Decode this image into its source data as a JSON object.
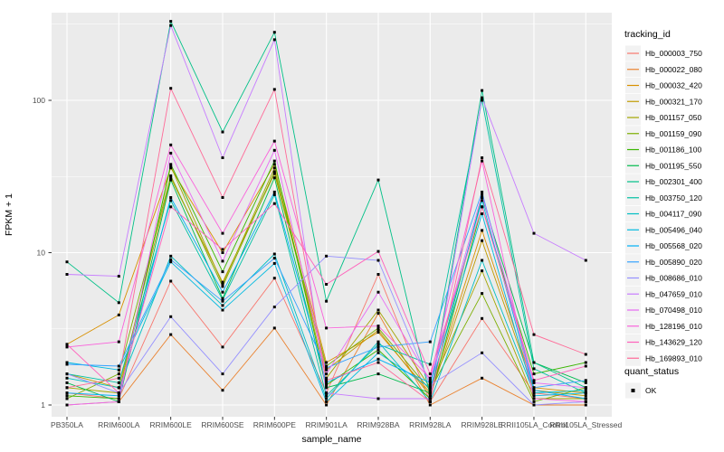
{
  "chart_data": {
    "type": "line",
    "title": "",
    "xlabel": "sample_name",
    "ylabel": "FPKM + 1",
    "y_scale": "log10",
    "ylim": [
      1,
      380
    ],
    "y_ticks": [
      1,
      10,
      100
    ],
    "y_tick_labels": [
      "1",
      "10",
      "100"
    ],
    "grid": "major white on grey panel, log minor lines",
    "legend_position": "right",
    "point_shape": "filled-square",
    "point_color": "#000000",
    "categories": [
      "PB350LA",
      "RRIM600LA",
      "RRIM600LE",
      "RRIM600SE",
      "RRIM600PE",
      "RRIM901LA",
      "RRIM928BA",
      "RRIM928LA",
      "RRIM928LE",
      "RRII105LA_Control",
      "RRII105LA_Stressed"
    ],
    "legend": {
      "color_title": "tracking_id",
      "shape_title": "quant_status",
      "shape_items": [
        {
          "label": "OK",
          "glyph": "filled-square",
          "color": "#000000"
        }
      ]
    },
    "series": [
      {
        "name": "Hb_000003_750",
        "color": "#F8766D",
        "values": [
          1.2,
          1.1,
          6.5,
          2.4,
          6.8,
          1.2,
          7.2,
          1.05,
          3.7,
          1.2,
          1.1
        ]
      },
      {
        "name": "Hb_000022_080",
        "color": "#EA8331",
        "values": [
          1.0,
          1.05,
          2.9,
          1.25,
          3.2,
          1.0,
          4.0,
          1.0,
          1.5,
          1.0,
          1.0
        ]
      },
      {
        "name": "Hb_000032_420",
        "color": "#D89000",
        "values": [
          2.5,
          3.9,
          36,
          10,
          38,
          1.9,
          3.0,
          1.2,
          14,
          1.3,
          1.2
        ]
      },
      {
        "name": "Hb_000321_170",
        "color": "#C09B00",
        "values": [
          1.6,
          1.3,
          31,
          6.4,
          33,
          1.7,
          3.1,
          1.15,
          12,
          1.25,
          1.15
        ]
      },
      {
        "name": "Hb_001157_050",
        "color": "#A3A500",
        "values": [
          1.3,
          1.2,
          37,
          6.2,
          36,
          1.5,
          4.2,
          1.3,
          7.6,
          1.1,
          1.1
        ]
      },
      {
        "name": "Hb_001159_090",
        "color": "#7CAE00",
        "values": [
          1.1,
          1.6,
          32,
          6.0,
          34,
          1.8,
          3.2,
          1.25,
          5.4,
          1.05,
          1.3
        ]
      },
      {
        "name": "Hb_001186_100",
        "color": "#39B600",
        "values": [
          1.15,
          1.1,
          38,
          7.5,
          40,
          1.35,
          2.3,
          1.1,
          20,
          1.6,
          1.9
        ]
      },
      {
        "name": "Hb_001195_550",
        "color": "#00BB4E",
        "values": [
          1.4,
          1.05,
          30,
          5.0,
          31,
          1.3,
          1.6,
          1.2,
          23,
          1.9,
          1.4
        ]
      },
      {
        "name": "Hb_002301_400",
        "color": "#00C087",
        "values": [
          8.7,
          4.7,
          330,
          62,
          280,
          4.8,
          30,
          1.15,
          116,
          1.9,
          1.3
        ]
      },
      {
        "name": "Hb_003750_120",
        "color": "#00C1A3",
        "values": [
          1.6,
          1.4,
          22,
          4.9,
          24,
          1.15,
          2.5,
          1.85,
          100,
          1.73,
          1.2
        ]
      },
      {
        "name": "Hb_004117_090",
        "color": "#00BFC4",
        "values": [
          1.5,
          1.3,
          9.5,
          4.5,
          9.8,
          1.1,
          2.6,
          1.05,
          8.9,
          1.2,
          1.25
        ]
      },
      {
        "name": "Hb_005496_040",
        "color": "#00BAE0",
        "values": [
          1.9,
          1.7,
          8.7,
          4.2,
          8.5,
          1.05,
          2.2,
          1.3,
          18,
          1.15,
          1.2
        ]
      },
      {
        "name": "Hb_005568_020",
        "color": "#00B0F6",
        "values": [
          1.2,
          1.15,
          23,
          5.5,
          25,
          1.4,
          2.0,
          1.4,
          22,
          1.25,
          1.1
        ]
      },
      {
        "name": "Hb_005890_020",
        "color": "#35A2FF",
        "values": [
          1.85,
          1.8,
          9.0,
          4.8,
          9.2,
          1.75,
          2.4,
          2.6,
          25,
          1.3,
          1.45
        ]
      },
      {
        "name": "Hb_008686_010",
        "color": "#9590FF",
        "values": [
          1.6,
          1.2,
          3.8,
          1.6,
          4.4,
          9.5,
          8.9,
          1.35,
          2.2,
          1.0,
          1.05
        ]
      },
      {
        "name": "Hb_047659_010",
        "color": "#C77CFF",
        "values": [
          7.2,
          7.0,
          310,
          42,
          250,
          1.2,
          1.1,
          1.1,
          104,
          13.4,
          8.9
        ]
      },
      {
        "name": "Hb_070498_010",
        "color": "#E76BF3",
        "values": [
          1.0,
          1.05,
          45,
          8.8,
          47,
          1.6,
          5.5,
          1.45,
          24,
          1.4,
          1.3
        ]
      },
      {
        "name": "Hb_128196_010",
        "color": "#FA62DB",
        "values": [
          2.4,
          2.6,
          51,
          13.4,
          54,
          3.2,
          3.3,
          1.5,
          40,
          1.1,
          1.05
        ]
      },
      {
        "name": "Hb_143629_120",
        "color": "#FF62BC",
        "values": [
          2.5,
          1.2,
          20,
          10.5,
          21,
          6.2,
          10.2,
          1.6,
          20,
          1.45,
          1.8
        ]
      },
      {
        "name": "Hb_169893_010",
        "color": "#FF6A98",
        "values": [
          1.3,
          1.5,
          120,
          23,
          118,
          1.45,
          1.9,
          1.05,
          42,
          2.9,
          2.15
        ]
      }
    ]
  },
  "theme": {
    "background": "#FFFFFF",
    "panel_bg": "#EBEBEB",
    "grid_color": "#FFFFFF",
    "axis_text_color": "#4D4D4D",
    "axis_title_color": "#000000",
    "tick_mark_color": "#333333",
    "legend_key_bg": "#F2F2F2",
    "legend_text_color": "#000000"
  }
}
